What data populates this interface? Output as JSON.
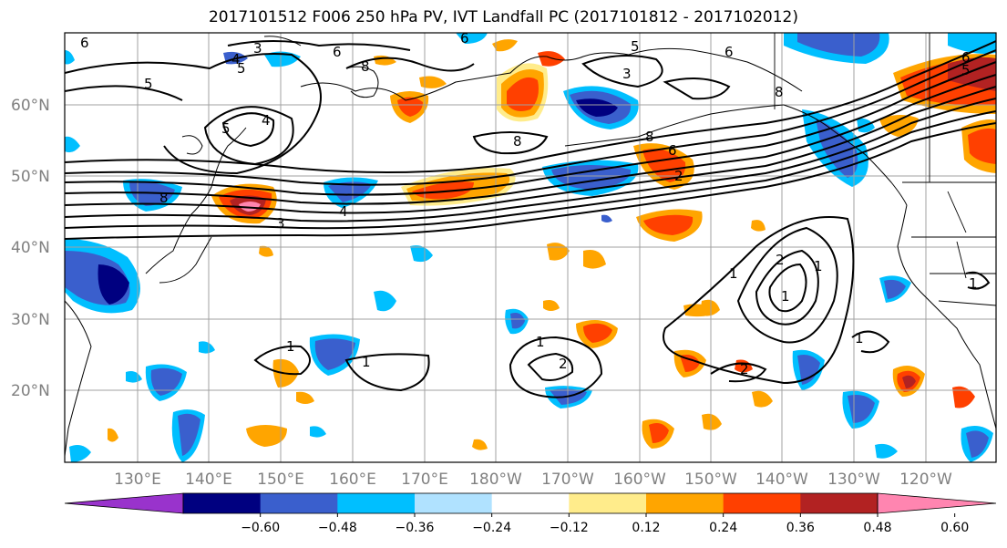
{
  "title": "2017101512 F006 250 hPa PV, IVT Landfall PC (2017101812 - 2017102012)",
  "lat_ticks": [
    "60°N",
    "50°N",
    "40°N",
    "30°N",
    "20°N"
  ],
  "lon_ticks": [
    "130°E",
    "140°E",
    "150°E",
    "160°E",
    "170°E",
    "180°W",
    "170°W",
    "160°W",
    "150°W",
    "140°W",
    "130°W",
    "120°W"
  ],
  "colorbar": {
    "colors": [
      "#9933cc",
      "#000080",
      "#3a5fcd",
      "#00bfff",
      "#b0e2ff",
      "#ffffff",
      "#ffec8b",
      "#ffa500",
      "#ff4000",
      "#b22222",
      "#ff85b0"
    ],
    "labels": [
      "−0.60",
      "−0.48",
      "−0.36",
      "−0.24",
      "−0.12",
      "0.12",
      "0.24",
      "0.36",
      "0.48",
      "0.60"
    ]
  },
  "contour_labels": [
    {
      "text": "6"
    },
    {
      "text": "3"
    },
    {
      "text": "4"
    },
    {
      "text": "5"
    },
    {
      "text": "6"
    },
    {
      "text": "8"
    },
    {
      "text": "5"
    },
    {
      "text": "4"
    },
    {
      "text": "5"
    },
    {
      "text": "6"
    },
    {
      "text": "3"
    },
    {
      "text": "5"
    },
    {
      "text": "6"
    },
    {
      "text": "8"
    },
    {
      "text": "8"
    },
    {
      "text": "8"
    },
    {
      "text": "6"
    },
    {
      "text": "2"
    },
    {
      "text": "8"
    },
    {
      "text": "4"
    },
    {
      "text": "3"
    },
    {
      "text": "1"
    },
    {
      "text": "2"
    },
    {
      "text": "1"
    },
    {
      "text": "1"
    },
    {
      "text": "1"
    },
    {
      "text": "2"
    },
    {
      "text": "1"
    },
    {
      "text": "2"
    },
    {
      "text": "1"
    },
    {
      "text": "1"
    },
    {
      "text": "6"
    },
    {
      "text": "5"
    },
    {
      "text": "1"
    }
  ]
}
